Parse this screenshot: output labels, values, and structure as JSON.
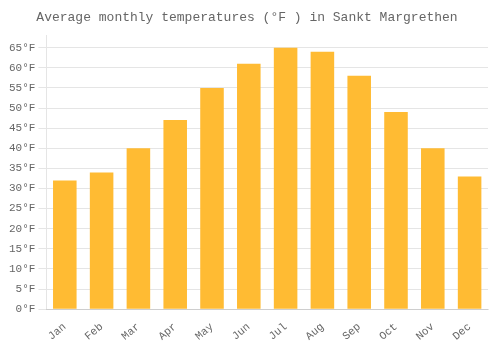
{
  "chart_data": {
    "type": "bar",
    "title": "Average monthly temperatures (°F ) in Sankt Margrethen",
    "categories": [
      "Jan",
      "Feb",
      "Mar",
      "Apr",
      "May",
      "Jun",
      "Jul",
      "Aug",
      "Sep",
      "Oct",
      "Nov",
      "Dec"
    ],
    "values": [
      32,
      34,
      40,
      47,
      55,
      61,
      65,
      64,
      58,
      49,
      40,
      33
    ],
    "color": "#FFBB33",
    "ylim": [
      0,
      68
    ],
    "yticks": [
      {
        "value": 0,
        "label": "0°F"
      },
      {
        "value": 5,
        "label": "5°F"
      },
      {
        "value": 10,
        "label": "10°F"
      },
      {
        "value": 15,
        "label": "15°F"
      },
      {
        "value": 20,
        "label": "20°F"
      },
      {
        "value": 25,
        "label": "25°F"
      },
      {
        "value": 30,
        "label": "30°F"
      },
      {
        "value": 35,
        "label": "35°F"
      },
      {
        "value": 40,
        "label": "40°F"
      },
      {
        "value": 45,
        "label": "45°F"
      },
      {
        "value": 50,
        "label": "50°F"
      },
      {
        "value": 55,
        "label": "55°F"
      },
      {
        "value": 60,
        "label": "60°F"
      },
      {
        "value": 65,
        "label": "65°F"
      }
    ],
    "grid": true
  }
}
